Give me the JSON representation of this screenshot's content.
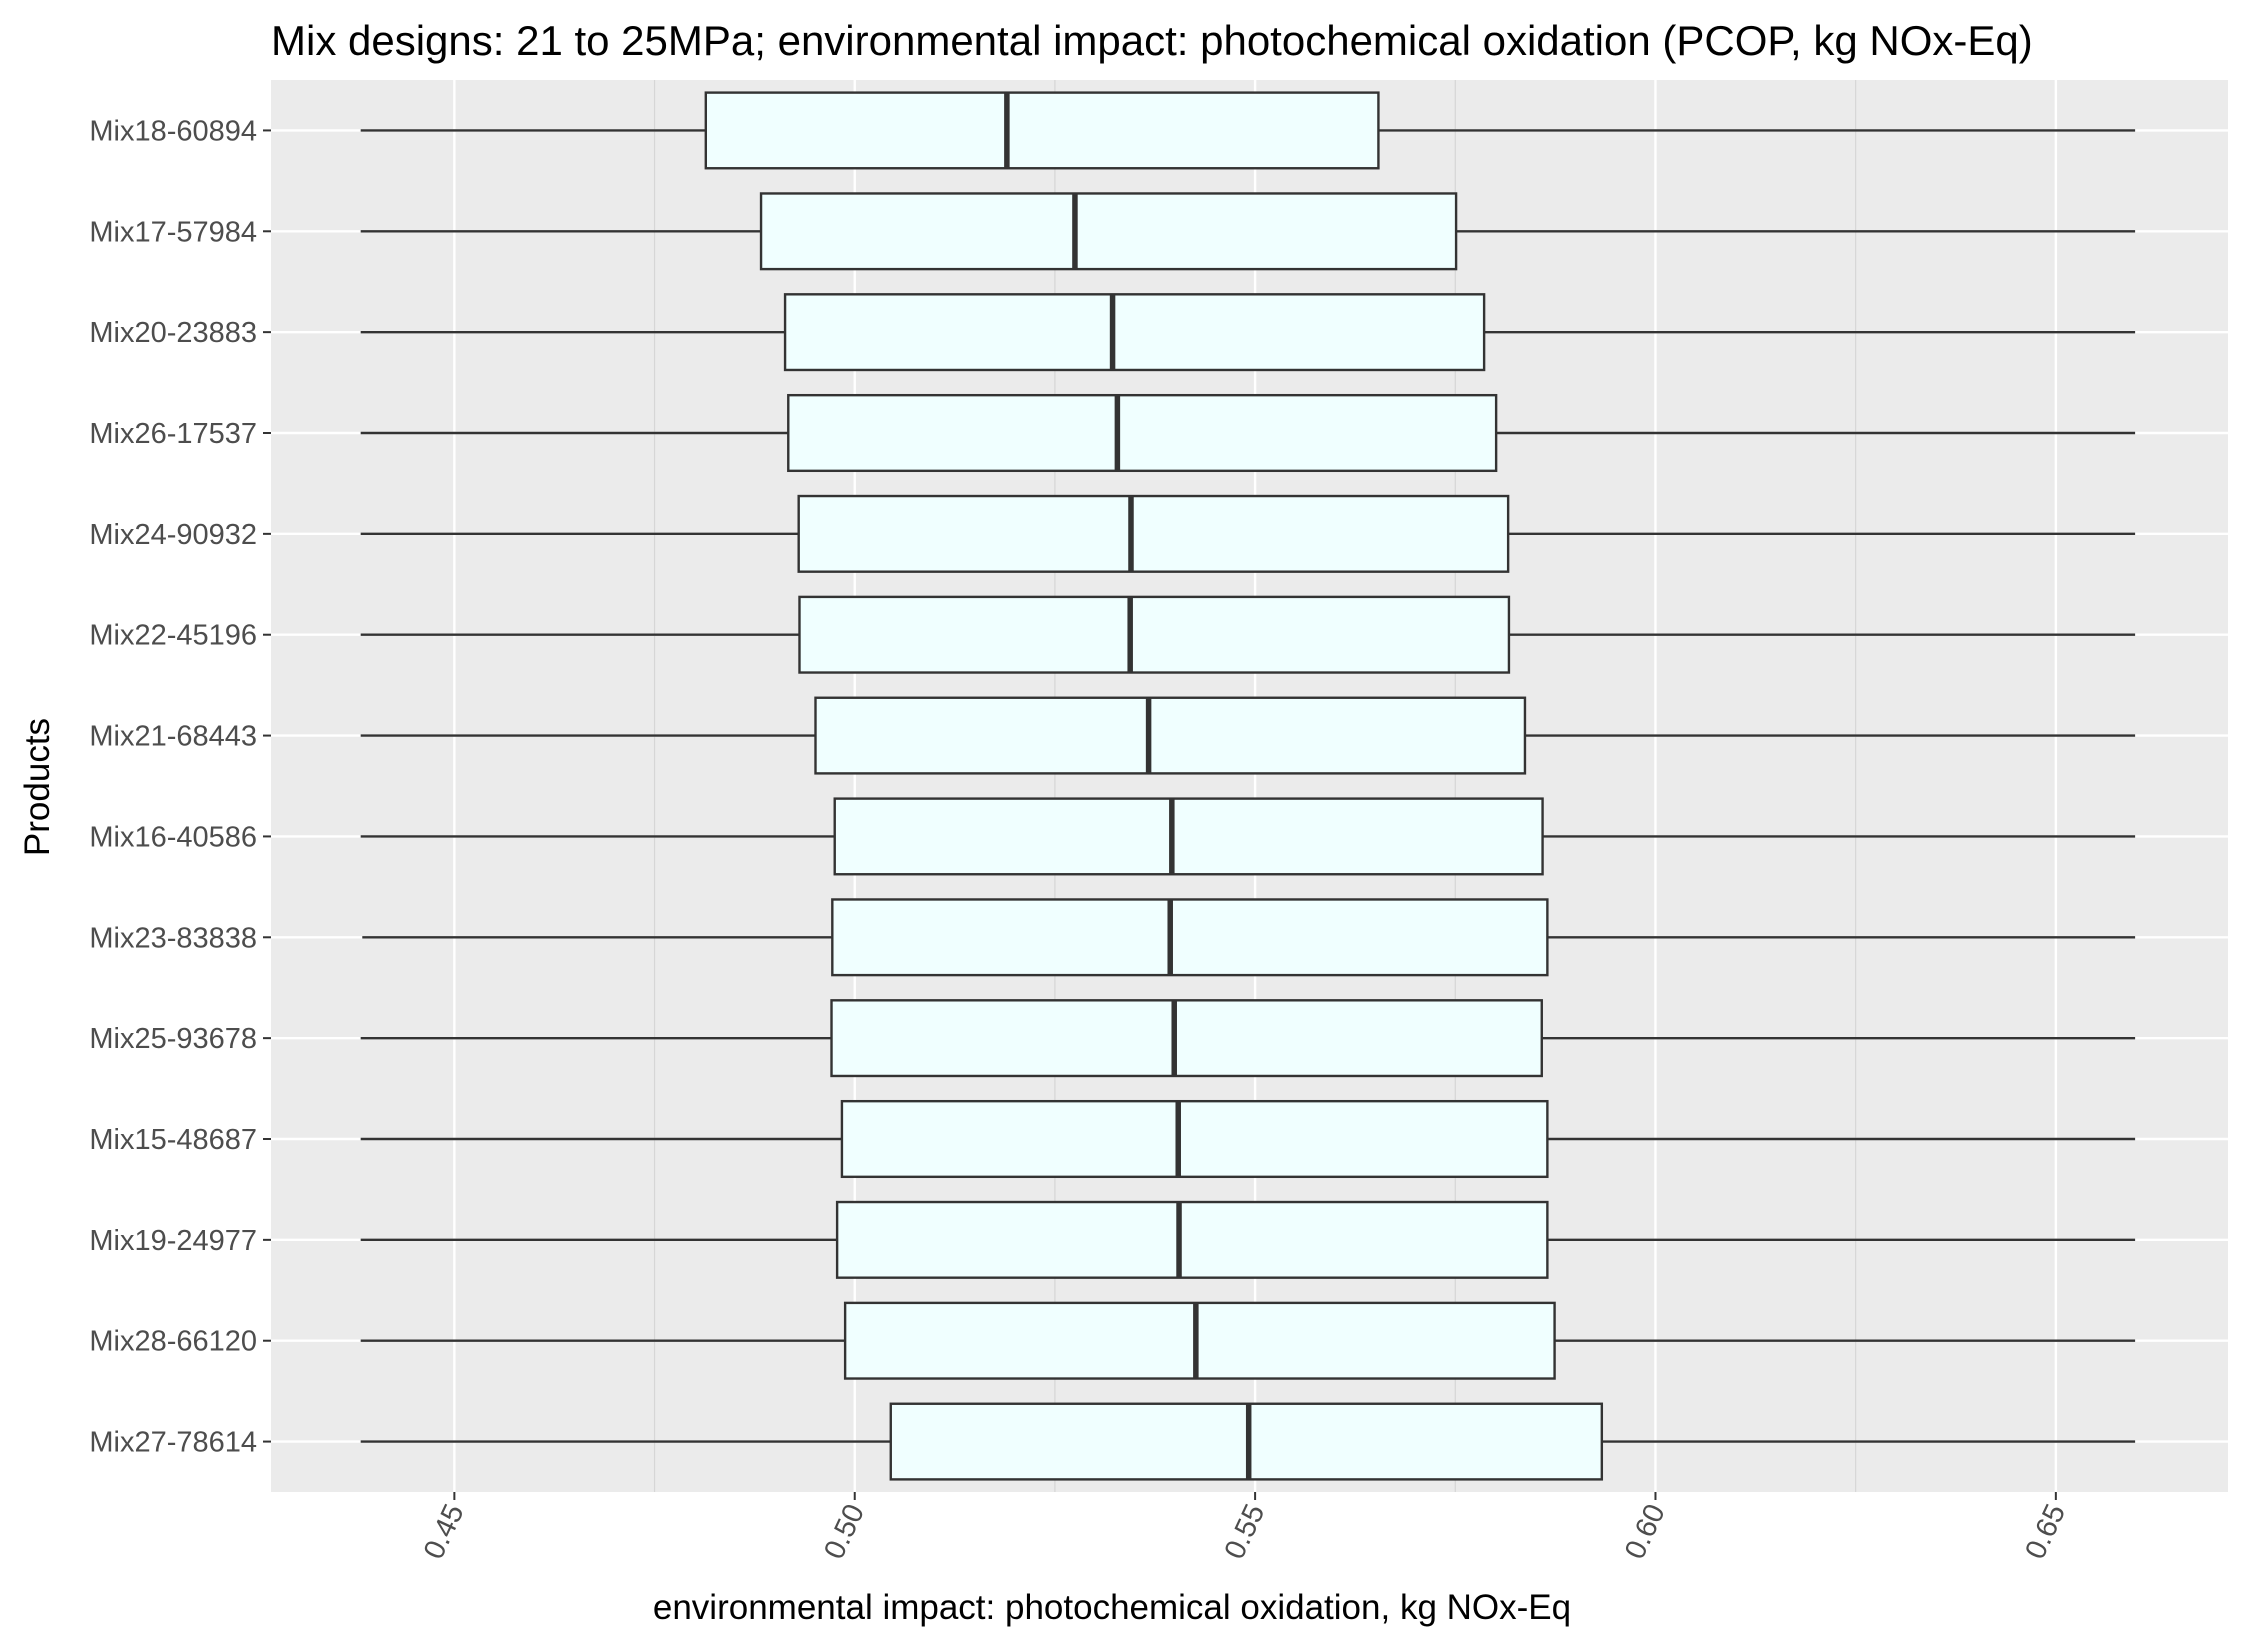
{
  "chart_data": {
    "type": "boxplot",
    "title": "Mix designs: 21 to 25MPa; environmental impact: photochemical oxidation (PCOP, kg NOx-Eq)",
    "xlabel": "environmental impact: photochemical oxidation, kg NOx-Eq",
    "ylabel": "Products",
    "xlim": [
      0.4271,
      0.6715
    ],
    "x_ticks": [
      0.45,
      0.5,
      0.55,
      0.6,
      0.65
    ],
    "x_tick_labels": [
      "0.45",
      "0.50",
      "0.55",
      "0.60",
      "0.65"
    ],
    "grid": true,
    "box_fill": "#f0ffff",
    "box_stroke": "#333333",
    "panel_background": "#ebebeb",
    "categories": [
      "Mix18-60894",
      "Mix17-57984",
      "Mix20-23883",
      "Mix26-17537",
      "Mix24-90932",
      "Mix22-45196",
      "Mix21-68443",
      "Mix16-40586",
      "Mix23-83838",
      "Mix25-93678",
      "Mix15-48687",
      "Mix19-24977",
      "Mix28-66120",
      "Mix27-78614"
    ],
    "boxes": [
      {
        "name": "Mix18-60894",
        "min": 0.4383,
        "q1": 0.4814,
        "median": 0.519,
        "q3": 0.5654,
        "max": 0.6599
      },
      {
        "name": "Mix17-57984",
        "min": 0.4383,
        "q1": 0.4883,
        "median": 0.5275,
        "q3": 0.5751,
        "max": 0.6599
      },
      {
        "name": "Mix20-23883",
        "min": 0.4383,
        "q1": 0.4913,
        "median": 0.5322,
        "q3": 0.5786,
        "max": 0.6599
      },
      {
        "name": "Mix26-17537",
        "min": 0.4383,
        "q1": 0.4917,
        "median": 0.5328,
        "q3": 0.5801,
        "max": 0.6599
      },
      {
        "name": "Mix24-90932",
        "min": 0.4383,
        "q1": 0.493,
        "median": 0.5345,
        "q3": 0.5816,
        "max": 0.6599
      },
      {
        "name": "Mix22-45196",
        "min": 0.4383,
        "q1": 0.4931,
        "median": 0.5344,
        "q3": 0.5817,
        "max": 0.6599
      },
      {
        "name": "Mix21-68443",
        "min": 0.4383,
        "q1": 0.4951,
        "median": 0.5367,
        "q3": 0.5837,
        "max": 0.6599
      },
      {
        "name": "Mix16-40586",
        "min": 0.4383,
        "q1": 0.4975,
        "median": 0.5396,
        "q3": 0.5859,
        "max": 0.6599
      },
      {
        "name": "Mix23-83838",
        "min": 0.4385,
        "q1": 0.4972,
        "median": 0.5394,
        "q3": 0.5865,
        "max": 0.6599
      },
      {
        "name": "Mix25-93678",
        "min": 0.4383,
        "q1": 0.4971,
        "median": 0.5399,
        "q3": 0.5858,
        "max": 0.6599
      },
      {
        "name": "Mix15-48687",
        "min": 0.4383,
        "q1": 0.4984,
        "median": 0.5404,
        "q3": 0.5865,
        "max": 0.6599
      },
      {
        "name": "Mix19-24977",
        "min": 0.4383,
        "q1": 0.4978,
        "median": 0.5405,
        "q3": 0.5865,
        "max": 0.6599
      },
      {
        "name": "Mix28-66120",
        "min": 0.4383,
        "q1": 0.4988,
        "median": 0.5426,
        "q3": 0.5874,
        "max": 0.6599
      },
      {
        "name": "Mix27-78614",
        "min": 0.4383,
        "q1": 0.5045,
        "median": 0.5492,
        "q3": 0.5933,
        "max": 0.6599
      }
    ]
  }
}
